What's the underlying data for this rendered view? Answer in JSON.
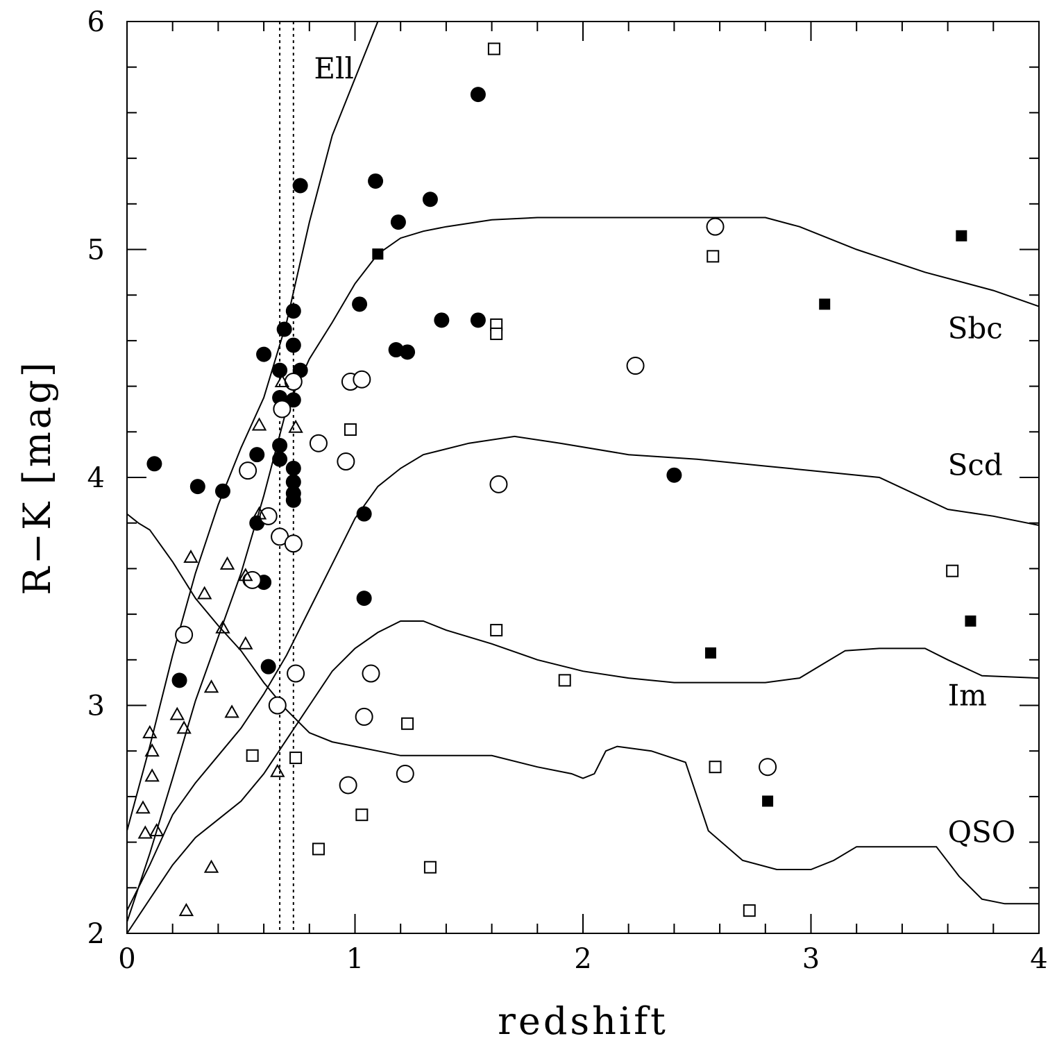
{
  "chart_data": {
    "type": "scatter",
    "xlabel": "redshift",
    "ylabel": "R−K [mag]",
    "xlim": [
      0,
      4
    ],
    "ylim": [
      2,
      6
    ],
    "x_major_ticks": [
      0,
      1,
      2,
      3,
      4
    ],
    "y_major_ticks": [
      2,
      3,
      4,
      5,
      6
    ],
    "x_tick_labels": [
      "0",
      "1",
      "2",
      "3",
      "4"
    ],
    "y_tick_labels": [
      "2",
      "3",
      "4",
      "5",
      "6"
    ],
    "x_minor_step": 0.2,
    "y_minor_step": 0.2,
    "grid": false,
    "vertical_lines": [
      0.67,
      0.73
    ],
    "curves": [
      {
        "name": "Ell",
        "label_at": [
          0.82,
          5.75
        ],
        "points": [
          [
            0,
            2.45
          ],
          [
            0.1,
            2.82
          ],
          [
            0.2,
            3.22
          ],
          [
            0.3,
            3.58
          ],
          [
            0.4,
            3.88
          ],
          [
            0.5,
            4.13
          ],
          [
            0.6,
            4.35
          ],
          [
            0.7,
            4.68
          ],
          [
            0.8,
            5.12
          ],
          [
            0.9,
            5.5
          ],
          [
            1.0,
            5.75
          ],
          [
            1.1,
            6.0
          ],
          [
            1.16,
            6.1
          ]
        ]
      },
      {
        "name": "Sbc",
        "label_at": [
          3.6,
          4.61
        ],
        "points": [
          [
            0,
            2.05
          ],
          [
            0.1,
            2.35
          ],
          [
            0.2,
            2.68
          ],
          [
            0.3,
            3.02
          ],
          [
            0.4,
            3.3
          ],
          [
            0.5,
            3.58
          ],
          [
            0.6,
            3.92
          ],
          [
            0.7,
            4.3
          ],
          [
            0.8,
            4.52
          ],
          [
            0.9,
            4.68
          ],
          [
            1.0,
            4.85
          ],
          [
            1.1,
            4.98
          ],
          [
            1.2,
            5.05
          ],
          [
            1.3,
            5.08
          ],
          [
            1.4,
            5.1
          ],
          [
            1.6,
            5.13
          ],
          [
            1.8,
            5.14
          ],
          [
            2.2,
            5.14
          ],
          [
            2.6,
            5.14
          ],
          [
            2.8,
            5.14
          ],
          [
            2.95,
            5.1
          ],
          [
            3.2,
            5.0
          ],
          [
            3.5,
            4.9
          ],
          [
            3.8,
            4.82
          ],
          [
            4.0,
            4.75
          ]
        ]
      },
      {
        "name": "Scd",
        "label_at": [
          3.6,
          4.01
        ],
        "points": [
          [
            0,
            2.1
          ],
          [
            0.1,
            2.3
          ],
          [
            0.2,
            2.52
          ],
          [
            0.3,
            2.66
          ],
          [
            0.4,
            2.78
          ],
          [
            0.5,
            2.9
          ],
          [
            0.6,
            3.05
          ],
          [
            0.7,
            3.22
          ],
          [
            0.8,
            3.42
          ],
          [
            0.9,
            3.62
          ],
          [
            1.0,
            3.82
          ],
          [
            1.1,
            3.96
          ],
          [
            1.2,
            4.04
          ],
          [
            1.3,
            4.1
          ],
          [
            1.5,
            4.15
          ],
          [
            1.7,
            4.18
          ],
          [
            1.9,
            4.15
          ],
          [
            2.2,
            4.1
          ],
          [
            2.5,
            4.08
          ],
          [
            2.8,
            4.05
          ],
          [
            3.0,
            4.03
          ],
          [
            3.3,
            4.0
          ],
          [
            3.6,
            3.86
          ],
          [
            3.8,
            3.83
          ],
          [
            4.0,
            3.79
          ]
        ]
      },
      {
        "name": "Im",
        "label_at": [
          3.6,
          3.0
        ],
        "points": [
          [
            0,
            2.0
          ],
          [
            0.1,
            2.15
          ],
          [
            0.2,
            2.3
          ],
          [
            0.3,
            2.42
          ],
          [
            0.4,
            2.5
          ],
          [
            0.5,
            2.58
          ],
          [
            0.6,
            2.7
          ],
          [
            0.7,
            2.85
          ],
          [
            0.8,
            3.0
          ],
          [
            0.9,
            3.15
          ],
          [
            1.0,
            3.25
          ],
          [
            1.1,
            3.32
          ],
          [
            1.2,
            3.37
          ],
          [
            1.3,
            3.37
          ],
          [
            1.4,
            3.33
          ],
          [
            1.6,
            3.27
          ],
          [
            1.8,
            3.2
          ],
          [
            2.0,
            3.15
          ],
          [
            2.2,
            3.12
          ],
          [
            2.4,
            3.1
          ],
          [
            2.6,
            3.1
          ],
          [
            2.8,
            3.1
          ],
          [
            2.95,
            3.12
          ],
          [
            3.05,
            3.18
          ],
          [
            3.15,
            3.24
          ],
          [
            3.3,
            3.25
          ],
          [
            3.5,
            3.25
          ],
          [
            3.6,
            3.2
          ],
          [
            3.75,
            3.13
          ],
          [
            4.0,
            3.12
          ]
        ]
      },
      {
        "name": "QSO",
        "label_at": [
          3.6,
          2.4
        ],
        "points": [
          [
            0,
            3.84
          ],
          [
            0.05,
            3.8
          ],
          [
            0.1,
            3.77
          ],
          [
            0.2,
            3.63
          ],
          [
            0.3,
            3.47
          ],
          [
            0.4,
            3.35
          ],
          [
            0.5,
            3.24
          ],
          [
            0.6,
            3.1
          ],
          [
            0.7,
            2.98
          ],
          [
            0.8,
            2.88
          ],
          [
            0.9,
            2.84
          ],
          [
            1.0,
            2.82
          ],
          [
            1.1,
            2.8
          ],
          [
            1.2,
            2.78
          ],
          [
            1.3,
            2.78
          ],
          [
            1.4,
            2.78
          ],
          [
            1.5,
            2.78
          ],
          [
            1.6,
            2.78
          ],
          [
            1.8,
            2.73
          ],
          [
            1.95,
            2.7
          ],
          [
            2.0,
            2.68
          ],
          [
            2.05,
            2.7
          ],
          [
            2.1,
            2.8
          ],
          [
            2.15,
            2.82
          ],
          [
            2.3,
            2.8
          ],
          [
            2.45,
            2.75
          ],
          [
            2.5,
            2.6
          ],
          [
            2.55,
            2.45
          ],
          [
            2.7,
            2.32
          ],
          [
            2.85,
            2.28
          ],
          [
            3.0,
            2.28
          ],
          [
            3.1,
            2.32
          ],
          [
            3.2,
            2.38
          ],
          [
            3.35,
            2.38
          ],
          [
            3.55,
            2.38
          ],
          [
            3.65,
            2.25
          ],
          [
            3.75,
            2.15
          ],
          [
            3.85,
            2.13
          ],
          [
            4.0,
            2.13
          ]
        ]
      }
    ],
    "series": [
      {
        "name": "filled-circles",
        "marker": "circle-filled",
        "points": [
          [
            0.12,
            4.06
          ],
          [
            0.23,
            3.11
          ],
          [
            0.31,
            3.96
          ],
          [
            0.42,
            3.94
          ],
          [
            0.54,
            3.55
          ],
          [
            0.57,
            3.8
          ],
          [
            0.57,
            4.1
          ],
          [
            0.6,
            3.54
          ],
          [
            0.6,
            4.54
          ],
          [
            0.62,
            3.17
          ],
          [
            0.67,
            4.47
          ],
          [
            0.67,
            4.35
          ],
          [
            0.67,
            4.14
          ],
          [
            0.67,
            4.08
          ],
          [
            0.69,
            4.65
          ],
          [
            0.73,
            4.73
          ],
          [
            0.73,
            4.58
          ],
          [
            0.73,
            4.34
          ],
          [
            0.73,
            4.04
          ],
          [
            0.73,
            3.98
          ],
          [
            0.73,
            3.93
          ],
          [
            0.73,
            3.9
          ],
          [
            0.76,
            4.47
          ],
          [
            0.76,
            5.28
          ],
          [
            1.02,
            4.76
          ],
          [
            1.04,
            3.84
          ],
          [
            1.04,
            3.47
          ],
          [
            1.09,
            5.3
          ],
          [
            1.18,
            4.56
          ],
          [
            1.19,
            5.12
          ],
          [
            1.23,
            4.55
          ],
          [
            1.33,
            5.22
          ],
          [
            1.38,
            4.69
          ],
          [
            1.54,
            5.68
          ],
          [
            1.54,
            4.69
          ],
          [
            2.4,
            4.01
          ]
        ]
      },
      {
        "name": "open-circles",
        "marker": "circle-open",
        "points": [
          [
            0.25,
            3.31
          ],
          [
            0.53,
            4.03
          ],
          [
            0.55,
            3.55
          ],
          [
            0.62,
            3.83
          ],
          [
            0.66,
            3.0
          ],
          [
            0.67,
            3.74
          ],
          [
            0.68,
            4.3
          ],
          [
            0.73,
            4.42
          ],
          [
            0.73,
            3.71
          ],
          [
            0.74,
            3.14
          ],
          [
            0.84,
            4.15
          ],
          [
            0.96,
            4.07
          ],
          [
            0.97,
            2.65
          ],
          [
            0.98,
            4.42
          ],
          [
            1.03,
            4.43
          ],
          [
            1.04,
            2.95
          ],
          [
            1.07,
            3.14
          ],
          [
            1.22,
            2.7
          ],
          [
            1.63,
            3.97
          ],
          [
            2.23,
            4.49
          ],
          [
            2.58,
            5.1
          ],
          [
            2.81,
            2.73
          ]
        ]
      },
      {
        "name": "open-triangles",
        "marker": "triangle-open",
        "points": [
          [
            0.07,
            2.55
          ],
          [
            0.08,
            2.44
          ],
          [
            0.1,
            2.88
          ],
          [
            0.11,
            2.8
          ],
          [
            0.11,
            2.69
          ],
          [
            0.13,
            2.45
          ],
          [
            0.22,
            2.96
          ],
          [
            0.25,
            2.9
          ],
          [
            0.26,
            2.1
          ],
          [
            0.28,
            3.65
          ],
          [
            0.34,
            3.49
          ],
          [
            0.37,
            2.29
          ],
          [
            0.37,
            3.08
          ],
          [
            0.42,
            3.34
          ],
          [
            0.44,
            3.62
          ],
          [
            0.46,
            2.97
          ],
          [
            0.52,
            3.27
          ],
          [
            0.52,
            3.57
          ],
          [
            0.58,
            4.23
          ],
          [
            0.58,
            3.84
          ],
          [
            0.66,
            2.71
          ],
          [
            0.68,
            4.42
          ],
          [
            0.74,
            4.22
          ]
        ]
      },
      {
        "name": "open-squares",
        "marker": "square-open",
        "points": [
          [
            0.55,
            2.78
          ],
          [
            0.74,
            2.77
          ],
          [
            0.84,
            2.37
          ],
          [
            0.98,
            4.21
          ],
          [
            1.03,
            2.52
          ],
          [
            1.23,
            2.92
          ],
          [
            1.33,
            2.29
          ],
          [
            1.61,
            5.88
          ],
          [
            1.62,
            3.33
          ],
          [
            1.62,
            4.67
          ],
          [
            1.62,
            4.63
          ],
          [
            1.92,
            3.11
          ],
          [
            2.57,
            4.97
          ],
          [
            2.58,
            2.73
          ],
          [
            2.73,
            2.1
          ],
          [
            3.62,
            3.59
          ]
        ]
      },
      {
        "name": "filled-squares",
        "marker": "square-filled",
        "points": [
          [
            1.1,
            4.98
          ],
          [
            2.56,
            3.23
          ],
          [
            2.81,
            2.58
          ],
          [
            3.06,
            4.76
          ],
          [
            3.66,
            5.06
          ],
          [
            3.7,
            3.37
          ]
        ]
      }
    ]
  }
}
